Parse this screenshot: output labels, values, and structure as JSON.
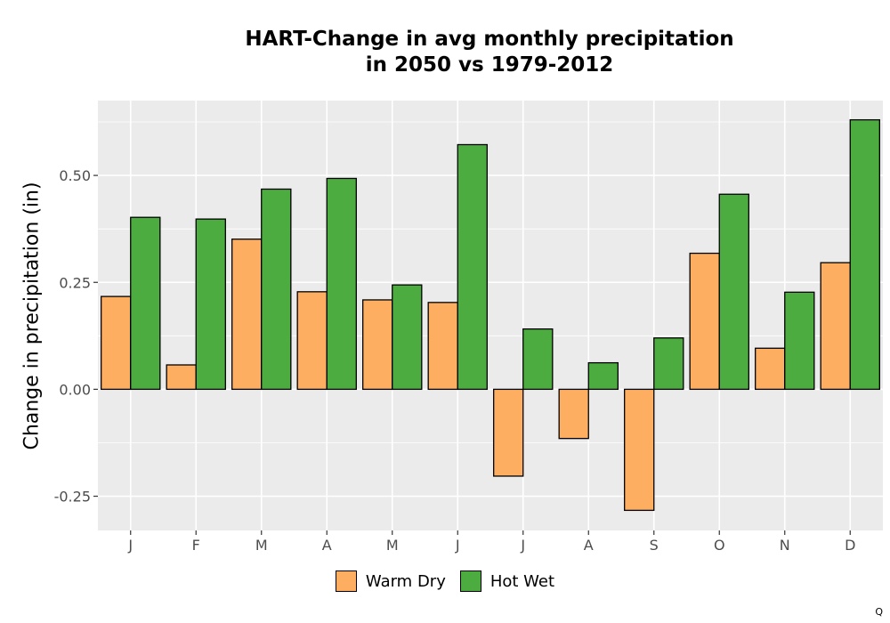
{
  "chart_data": {
    "type": "bar",
    "title_lines": [
      "HART-Change in avg monthly precipitation",
      "in 2050 vs 1979-2012"
    ],
    "xlabel": "",
    "ylabel": "Change in precipitation (in)",
    "categories": [
      "J",
      "F",
      "M",
      "A",
      "M",
      "J",
      "J",
      "A",
      "S",
      "O",
      "N",
      "D"
    ],
    "series": [
      {
        "name": "Warm Dry",
        "color": "#FDAE61",
        "values": [
          0.217,
          0.057,
          0.351,
          0.228,
          0.209,
          0.203,
          -0.203,
          -0.115,
          -0.283,
          0.318,
          0.096,
          0.296
        ]
      },
      {
        "name": "Hot Wet",
        "color": "#4DAC3F",
        "values": [
          0.402,
          0.398,
          0.468,
          0.493,
          0.244,
          0.572,
          0.141,
          0.062,
          0.12,
          0.456,
          0.227,
          0.63
        ]
      }
    ],
    "yticks": [
      -0.25,
      0.0,
      0.25,
      0.5
    ],
    "ytick_labels": [
      "-0.25",
      "0.00",
      "0.25",
      "0.50"
    ],
    "ylim": [
      -0.33,
      0.675
    ],
    "grid": true,
    "panel_background": "#EBEBEB",
    "legend_position": "bottom"
  },
  "corner_mark": "Q"
}
